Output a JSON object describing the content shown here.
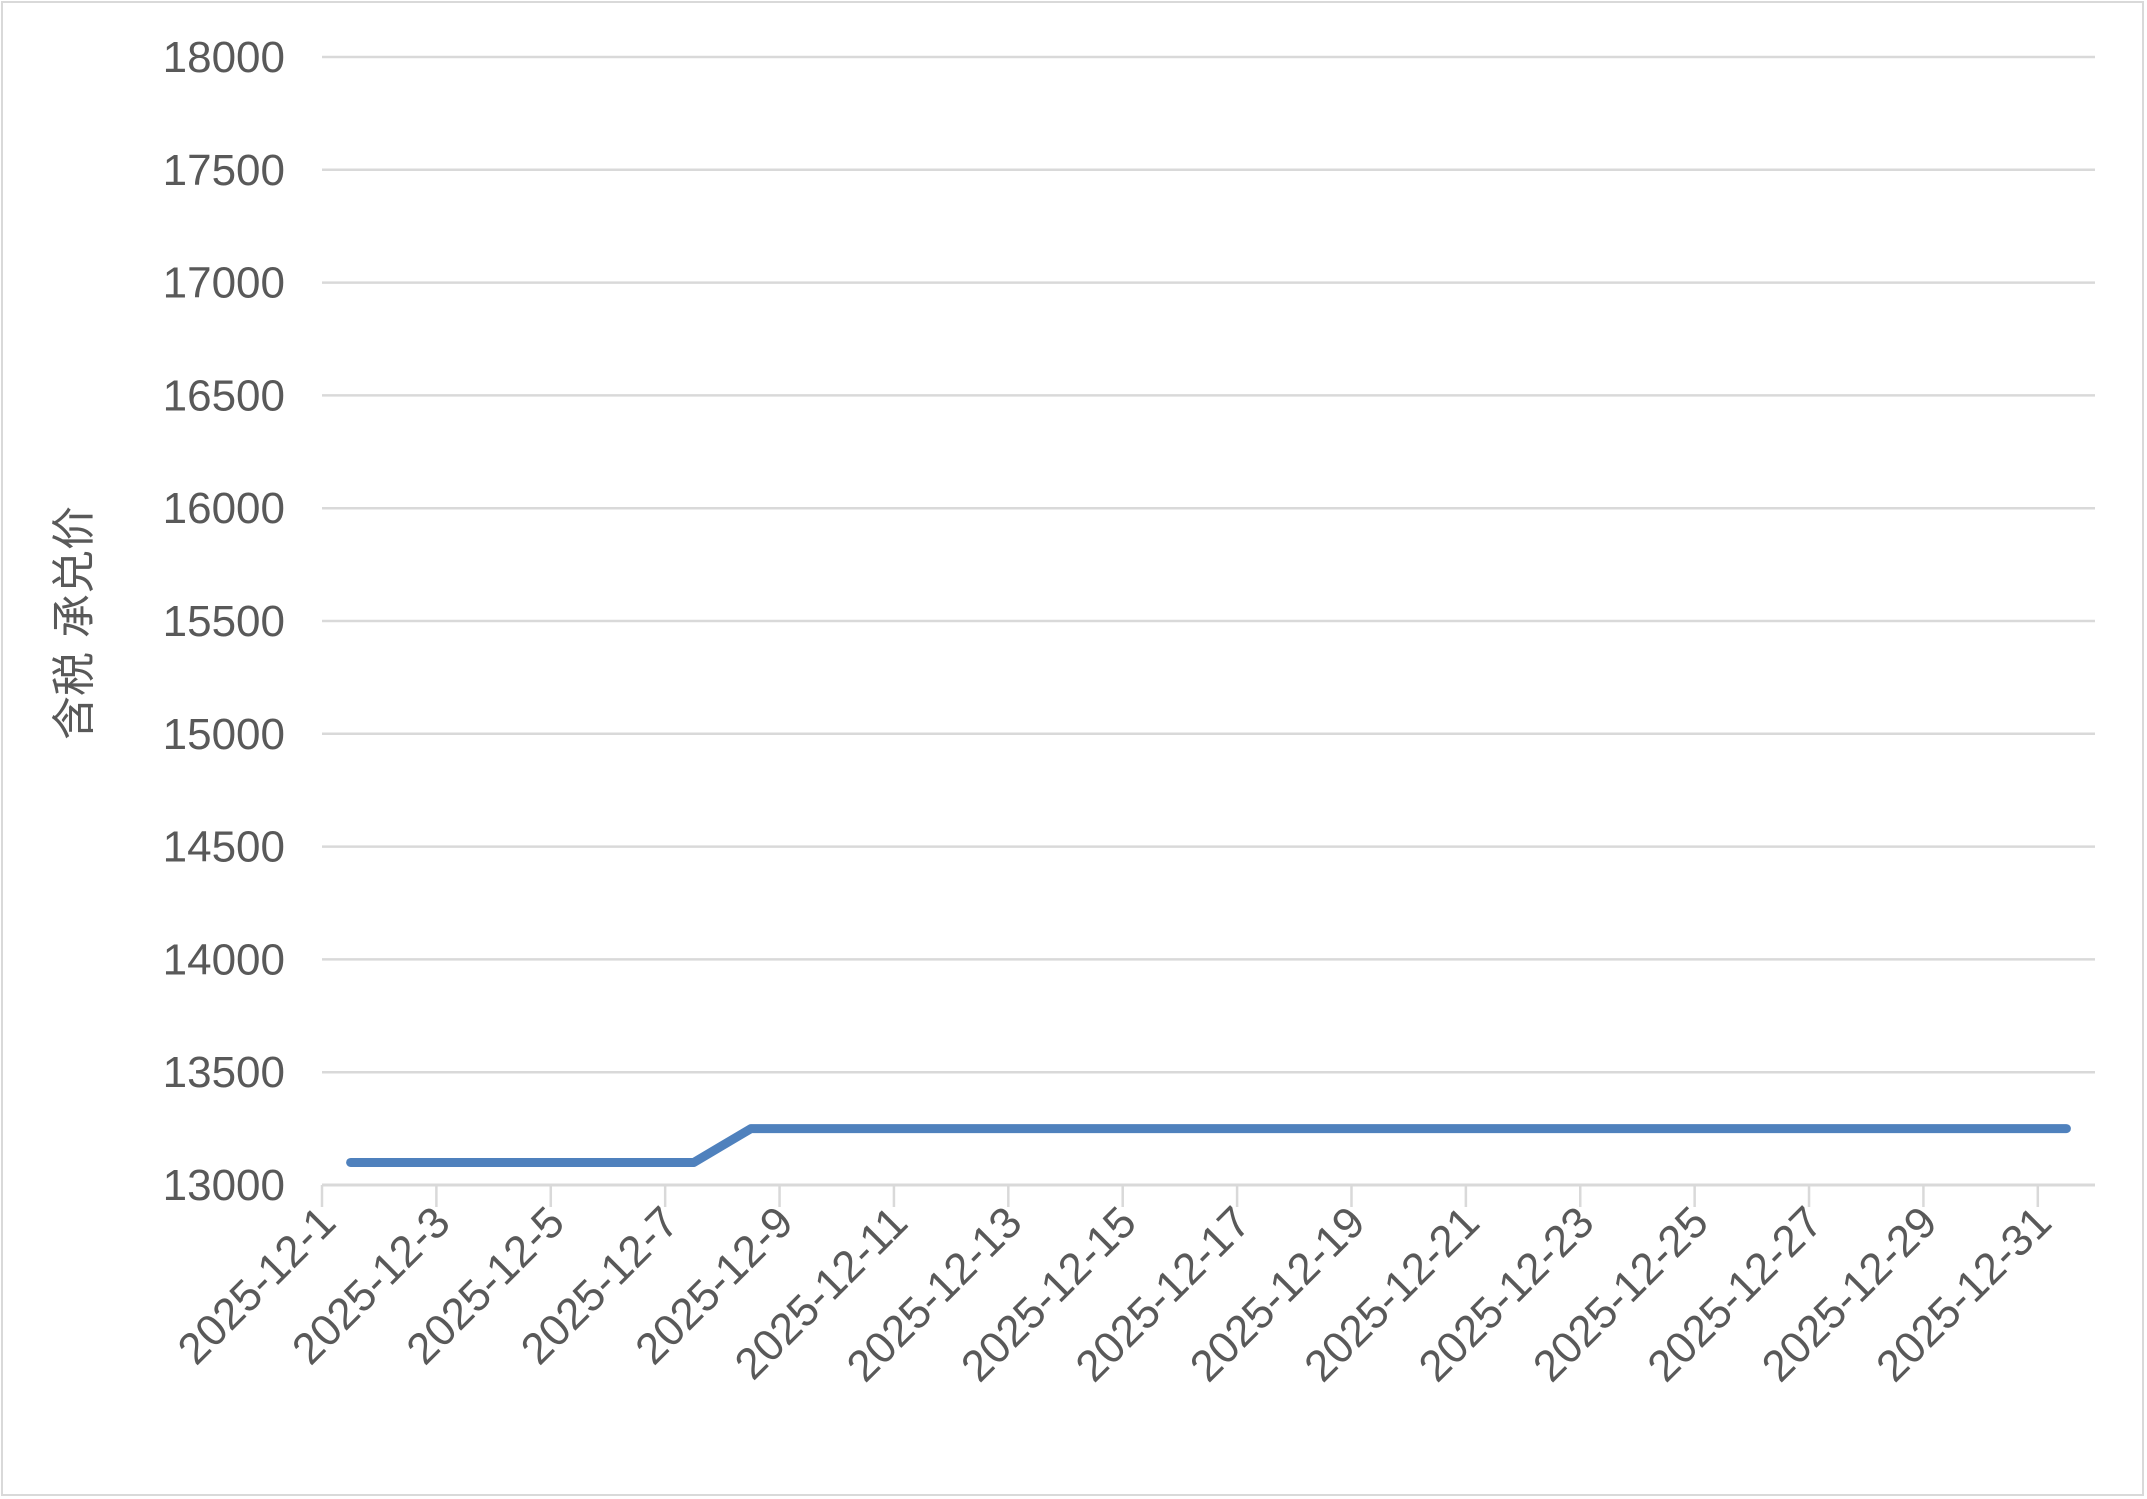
{
  "chart_data": {
    "type": "line",
    "title": "",
    "xlabel": "",
    "ylabel": "含税 承兑价",
    "ylim": [
      13000,
      18000
    ],
    "y_ticks": [
      13000,
      13500,
      14000,
      14500,
      15000,
      15500,
      16000,
      16500,
      17000,
      17500,
      18000
    ],
    "x_label_interval": 2,
    "grid": "horizontal",
    "legend": "none",
    "categories": [
      "2025-12-1",
      "2025-12-2",
      "2025-12-3",
      "2025-12-4",
      "2025-12-5",
      "2025-12-6",
      "2025-12-7",
      "2025-12-8",
      "2025-12-9",
      "2025-12-10",
      "2025-12-11",
      "2025-12-12",
      "2025-12-13",
      "2025-12-14",
      "2025-12-15",
      "2025-12-16",
      "2025-12-17",
      "2025-12-18",
      "2025-12-19",
      "2025-12-20",
      "2025-12-21",
      "2025-12-22",
      "2025-12-23",
      "2025-12-24",
      "2025-12-25",
      "2025-12-26",
      "2025-12-27",
      "2025-12-28",
      "2025-12-29",
      "2025-12-30",
      "2025-12-31"
    ],
    "series": [
      {
        "values": [
          13100,
          13100,
          13100,
          13100,
          13100,
          13100,
          13100,
          13250,
          13250,
          13250,
          13250,
          13250,
          13250,
          13250,
          13250,
          13250,
          13250,
          13250,
          13250,
          13250,
          13250,
          13250,
          13250,
          13250,
          13250,
          13250,
          13250,
          13250,
          13250,
          13250,
          13250
        ],
        "color": "#4f81bd"
      }
    ]
  }
}
